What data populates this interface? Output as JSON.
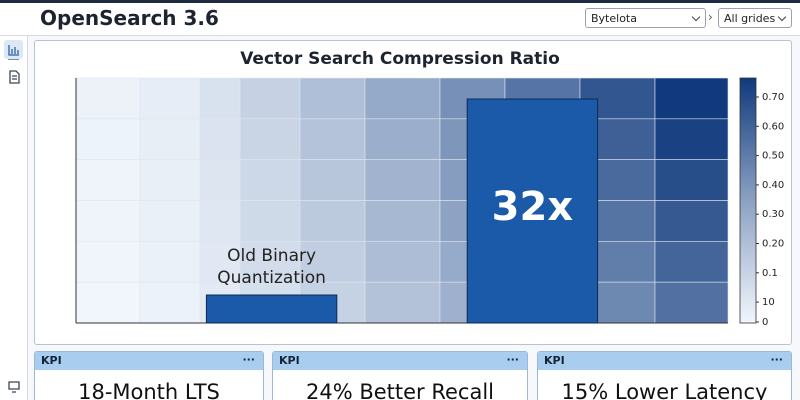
{
  "header": {
    "title": "OpenSearch 3.6",
    "selects": [
      "Bytelota",
      "All grides"
    ],
    "separator": "›"
  },
  "chart_data": {
    "type": "bar",
    "title": "Vector Search Compression Ratio",
    "categories": [
      "Old Binary Quantization",
      null
    ],
    "values": [
      4,
      32
    ],
    "value_labels": [
      null,
      "32x"
    ],
    "color": "#1a5aa8",
    "ylim": [
      0,
      35
    ],
    "colorbar_labels": [
      "0.70",
      "0.60",
      "0.50",
      "0.40",
      "0.30",
      "0.20",
      "0.1",
      "10",
      "0"
    ]
  },
  "kpis": [
    {
      "header": "KPI",
      "menu": "···",
      "text": "18-Month LTS"
    },
    {
      "header": "KPI",
      "menu": "···",
      "text": "24% Better Recall"
    },
    {
      "header": "KPI",
      "menu": "···",
      "text": "15% Lower Latency"
    }
  ]
}
